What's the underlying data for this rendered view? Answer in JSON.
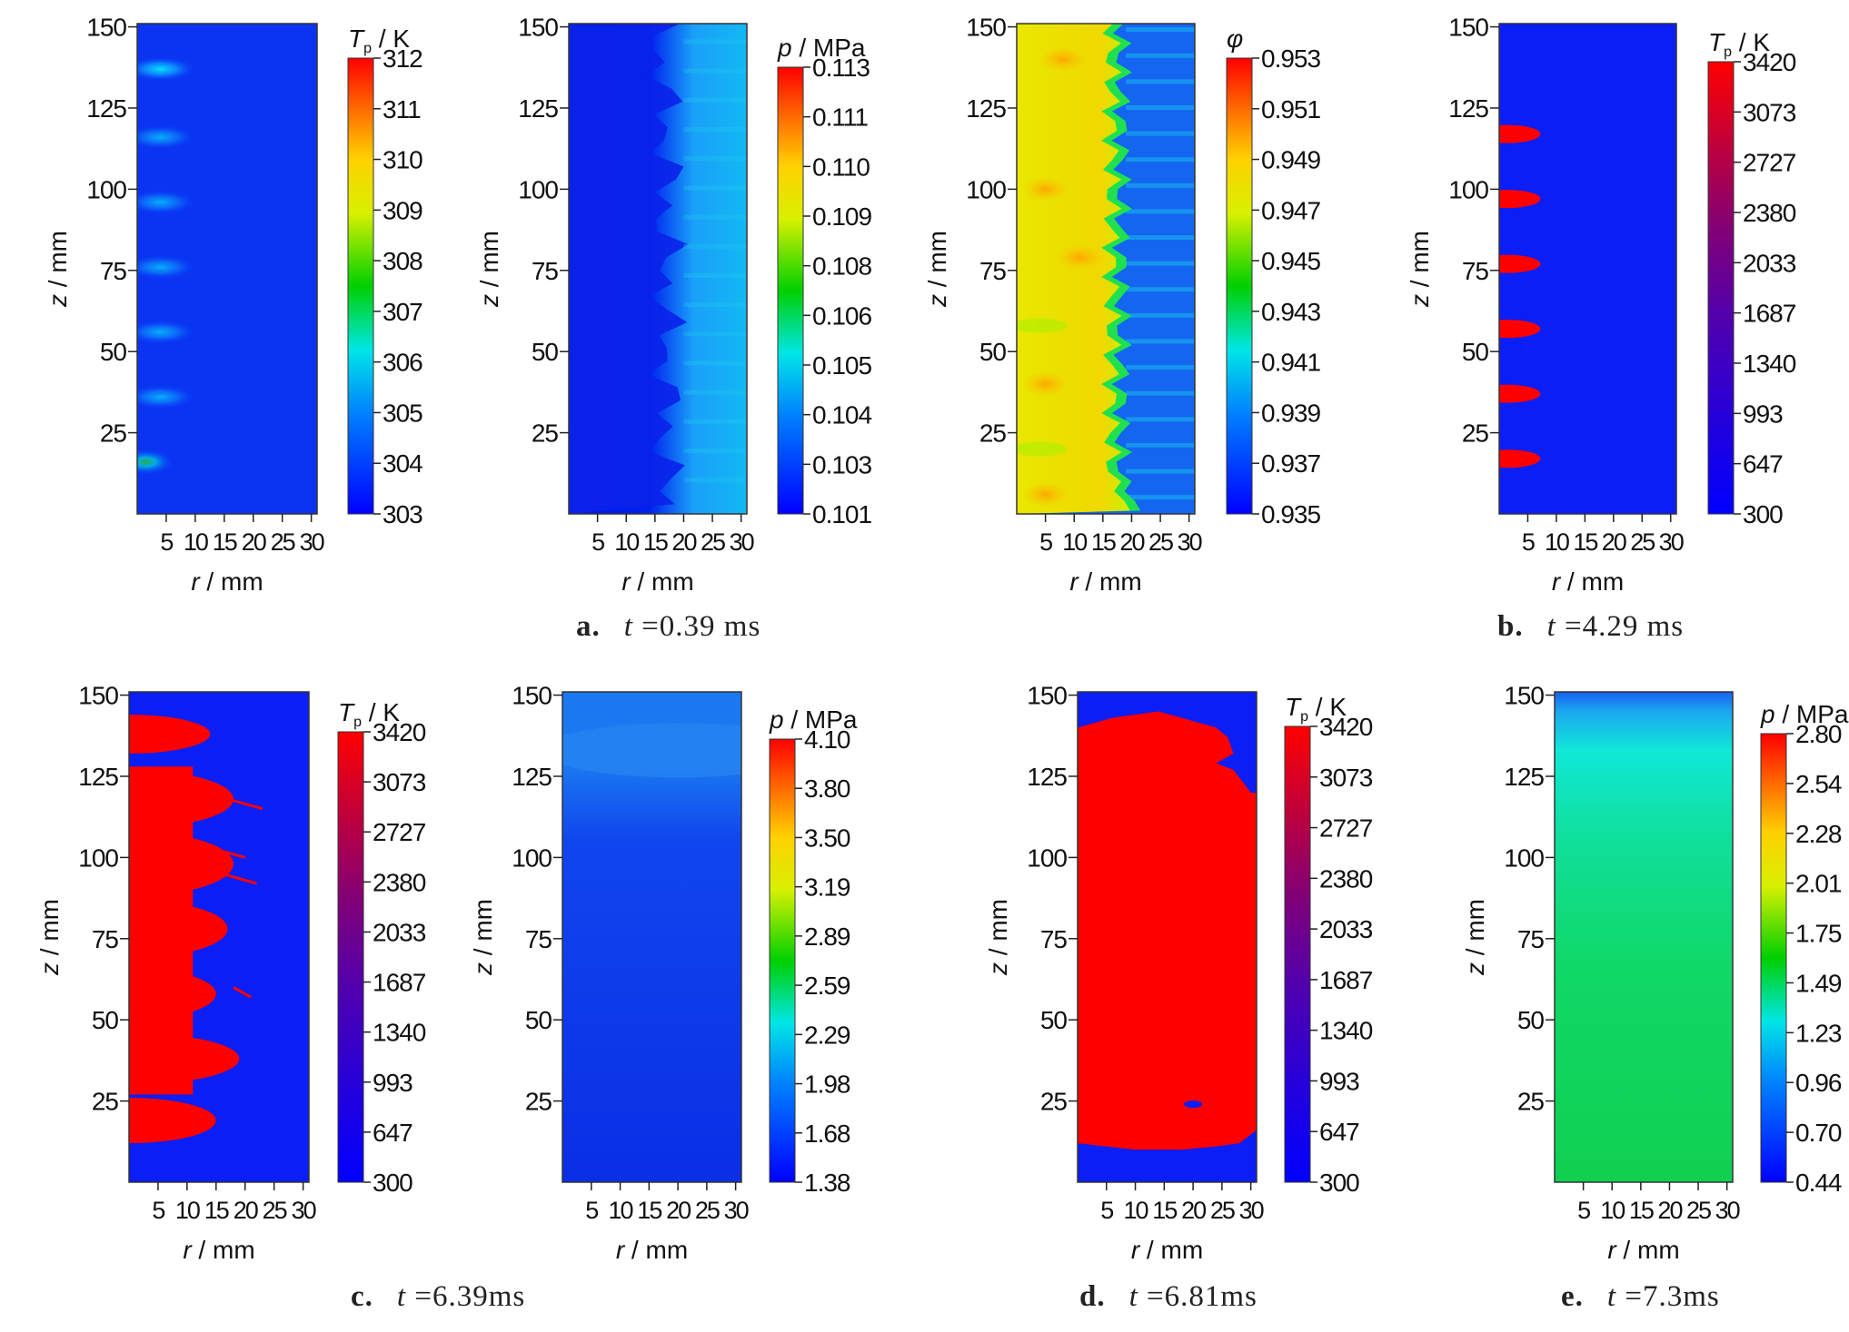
{
  "chart_data": [
    {
      "type": "heatmap",
      "field": "T_p",
      "colorbar_label": {
        "var": "T",
        "sub": "p",
        "unit": " / K"
      },
      "colorbar_ticks": [
        "312",
        "311",
        "310",
        "309",
        "308",
        "307",
        "306",
        "305",
        "304",
        "303"
      ],
      "colorbar_scale": "jet",
      "xlabel": {
        "var": "r",
        "unit": " / mm"
      },
      "ylabel": {
        "var": "z",
        "unit": " / mm"
      },
      "xticks": [
        "5",
        "10",
        "15",
        "20",
        "25",
        "30"
      ],
      "yticks": [
        "150",
        "125",
        "100",
        "75",
        "50",
        "25"
      ],
      "xlim": [
        0,
        31
      ],
      "ylim": [
        0,
        151
      ],
      "pattern": "cold",
      "hotspots": [
        [
          4,
          137
        ],
        [
          4,
          116
        ],
        [
          4,
          96
        ],
        [
          4,
          76
        ],
        [
          4,
          56
        ],
        [
          4,
          36
        ],
        [
          1.5,
          16
        ]
      ]
    },
    {
      "type": "heatmap",
      "field": "p",
      "colorbar_label": {
        "var": "p",
        "sub": "",
        "unit": " / MPa"
      },
      "colorbar_ticks": [
        "0.113",
        "0.111",
        "0.110",
        "0.109",
        "0.108",
        "0.106",
        "0.105",
        "0.104",
        "0.103",
        "0.101"
      ],
      "colorbar_scale": "jet",
      "xlabel": {
        "var": "r",
        "unit": " / mm"
      },
      "ylabel": {
        "var": "z",
        "unit": " / mm"
      },
      "xticks": [
        "5",
        "10",
        "15",
        "20",
        "25",
        "30"
      ],
      "yticks": [
        "150",
        "125",
        "100",
        "75",
        "50",
        "25"
      ],
      "xlim": [
        0,
        31
      ],
      "ylim": [
        0,
        151
      ],
      "pattern": "pressure_low"
    },
    {
      "type": "heatmap",
      "field": "phi",
      "colorbar_label": {
        "var": "φ",
        "sub": "",
        "unit": ""
      },
      "colorbar_ticks": [
        "0.953",
        "0.951",
        "0.949",
        "0.947",
        "0.945",
        "0.943",
        "0.941",
        "0.939",
        "0.937",
        "0.935"
      ],
      "colorbar_scale": "jet",
      "xlabel": {
        "var": "r",
        "unit": " / mm"
      },
      "ylabel": {
        "var": "z",
        "unit": " / mm"
      },
      "xticks": [
        "5",
        "10",
        "15",
        "20",
        "25",
        "30"
      ],
      "yticks": [
        "150",
        "125",
        "100",
        "75",
        "50",
        "25"
      ],
      "xlim": [
        0,
        31
      ],
      "ylim": [
        0,
        151
      ],
      "pattern": "phi"
    },
    {
      "type": "heatmap",
      "field": "T_p",
      "colorbar_label": {
        "var": "T",
        "sub": "p",
        "unit": " / K"
      },
      "colorbar_ticks": [
        "3420",
        "3073",
        "2727",
        "2380",
        "2033",
        "1687",
        "1340",
        "993",
        "647",
        "300"
      ],
      "colorbar_scale": "temp",
      "xlabel": {
        "var": "r",
        "unit": " / mm"
      },
      "ylabel": {
        "var": "z",
        "unit": " / mm"
      },
      "xticks": [
        "5",
        "10",
        "15",
        "20",
        "25",
        "30"
      ],
      "yticks": [
        "150",
        "125",
        "100",
        "75",
        "50",
        "25"
      ],
      "xlim": [
        0,
        31
      ],
      "ylim": [
        0,
        151
      ],
      "pattern": "blobs",
      "hot_z": [
        117,
        97,
        77,
        57,
        37,
        17
      ]
    },
    {
      "type": "heatmap",
      "field": "T_p",
      "colorbar_label": {
        "var": "T",
        "sub": "p",
        "unit": " / K"
      },
      "colorbar_ticks": [
        "3420",
        "3073",
        "2727",
        "2380",
        "2033",
        "1687",
        "1340",
        "993",
        "647",
        "300"
      ],
      "colorbar_scale": "temp",
      "xlabel": {
        "var": "r",
        "unit": " / mm"
      },
      "ylabel": {
        "var": "z",
        "unit": " / mm"
      },
      "xticks": [
        "5",
        "10",
        "15",
        "20",
        "25",
        "30"
      ],
      "yticks": [
        "150",
        "125",
        "100",
        "75",
        "50",
        "25"
      ],
      "xlim": [
        0,
        31
      ],
      "ylim": [
        0,
        151
      ],
      "pattern": "fronts"
    },
    {
      "type": "heatmap",
      "field": "p",
      "colorbar_label": {
        "var": "p",
        "sub": "",
        "unit": " / MPa"
      },
      "colorbar_ticks": [
        "4.10",
        "3.80",
        "3.50",
        "3.19",
        "2.89",
        "2.59",
        "2.29",
        "1.98",
        "1.68",
        "1.38"
      ],
      "colorbar_scale": "jet",
      "xlabel": {
        "var": "r",
        "unit": " / mm"
      },
      "ylabel": {
        "var": "z",
        "unit": " / mm"
      },
      "xticks": [
        "5",
        "10",
        "15",
        "20",
        "25",
        "30"
      ],
      "yticks": [
        "150",
        "125",
        "100",
        "75",
        "50",
        "25"
      ],
      "xlim": [
        0,
        31
      ],
      "ylim": [
        0,
        151
      ],
      "pattern": "pressure_c"
    },
    {
      "type": "heatmap",
      "field": "T_p",
      "colorbar_label": {
        "var": "T",
        "sub": "p",
        "unit": " / K"
      },
      "colorbar_ticks": [
        "3420",
        "3073",
        "2727",
        "2380",
        "2033",
        "1687",
        "1340",
        "993",
        "647",
        "300"
      ],
      "colorbar_scale": "temp",
      "xlabel": {
        "var": "r",
        "unit": " / mm"
      },
      "ylabel": {
        "var": "z",
        "unit": " / mm"
      },
      "xticks": [
        "5",
        "10",
        "15",
        "20",
        "25",
        "30"
      ],
      "yticks": [
        "150",
        "125",
        "100",
        "75",
        "50",
        "25"
      ],
      "xlim": [
        0,
        31
      ],
      "ylim": [
        0,
        151
      ],
      "pattern": "full"
    },
    {
      "type": "heatmap",
      "field": "p",
      "colorbar_label": {
        "var": "p",
        "sub": "",
        "unit": " / MPa"
      },
      "colorbar_ticks": [
        "2.80",
        "2.54",
        "2.28",
        "2.01",
        "1.75",
        "1.49",
        "1.23",
        "0.96",
        "0.70",
        "0.44"
      ],
      "colorbar_scale": "jet",
      "xlabel": {
        "var": "r",
        "unit": " / mm"
      },
      "ylabel": {
        "var": "z",
        "unit": " / mm"
      },
      "xticks": [
        "5",
        "10",
        "15",
        "20",
        "25",
        "30"
      ],
      "yticks": [
        "150",
        "125",
        "100",
        "75",
        "50",
        "25"
      ],
      "xlim": [
        0,
        31
      ],
      "ylim": [
        0,
        151
      ],
      "pattern": "pressure_e"
    }
  ],
  "captions": [
    {
      "letter": "a.",
      "time_var": "t",
      "time_value": " =0.39 ms"
    },
    {
      "letter": "b.",
      "time_var": "t",
      "time_value": " =4.29 ms"
    },
    {
      "letter": "c.",
      "time_var": "t",
      "time_value": " =6.39ms"
    },
    {
      "letter": "d.",
      "time_var": "t",
      "time_value": " =6.81ms"
    },
    {
      "letter": "e.",
      "time_var": "t",
      "time_value": " =7.3ms"
    }
  ]
}
